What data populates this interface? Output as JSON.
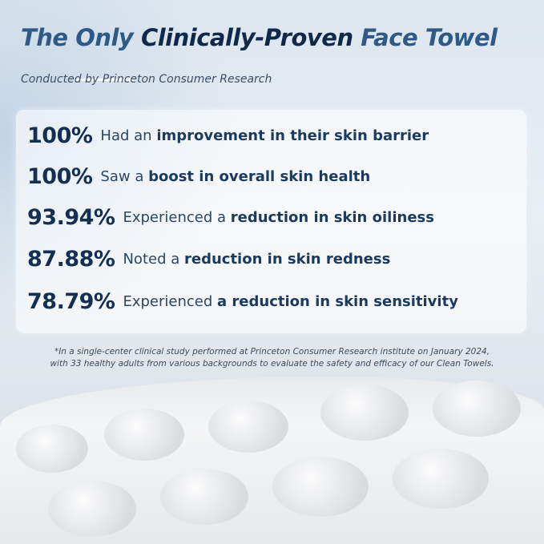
{
  "title": {
    "light_a": "The Only",
    "dark": "Clinically-Proven",
    "light_b": "Face Towel"
  },
  "subtitle": "Conducted by Princeton Consumer Research",
  "stats": [
    {
      "value": "100%",
      "plain": "Had an",
      "bold": "improvement in their skin barrier"
    },
    {
      "value": "100%",
      "plain": "Saw a",
      "bold": "boost in overall skin health"
    },
    {
      "value": "93.94%",
      "plain": "Experienced a",
      "bold": "reduction in skin oiliness"
    },
    {
      "value": "87.88%",
      "plain": "Noted a",
      "bold": "reduction in skin redness"
    },
    {
      "value": "78.79%",
      "plain": "Experienced",
      "bold": "a reduction in skin sensitivity"
    }
  ],
  "footnote": {
    "line1": "*In a single-center clinical study performed at Princeton Consumer Research institute on January 2024,",
    "line2": "with 33 healthy adults from various backgrounds to evaluate the safety and efficacy of our Clean Towels."
  },
  "colors": {
    "navy": "#142f52",
    "title_light": "#2f5a86"
  }
}
